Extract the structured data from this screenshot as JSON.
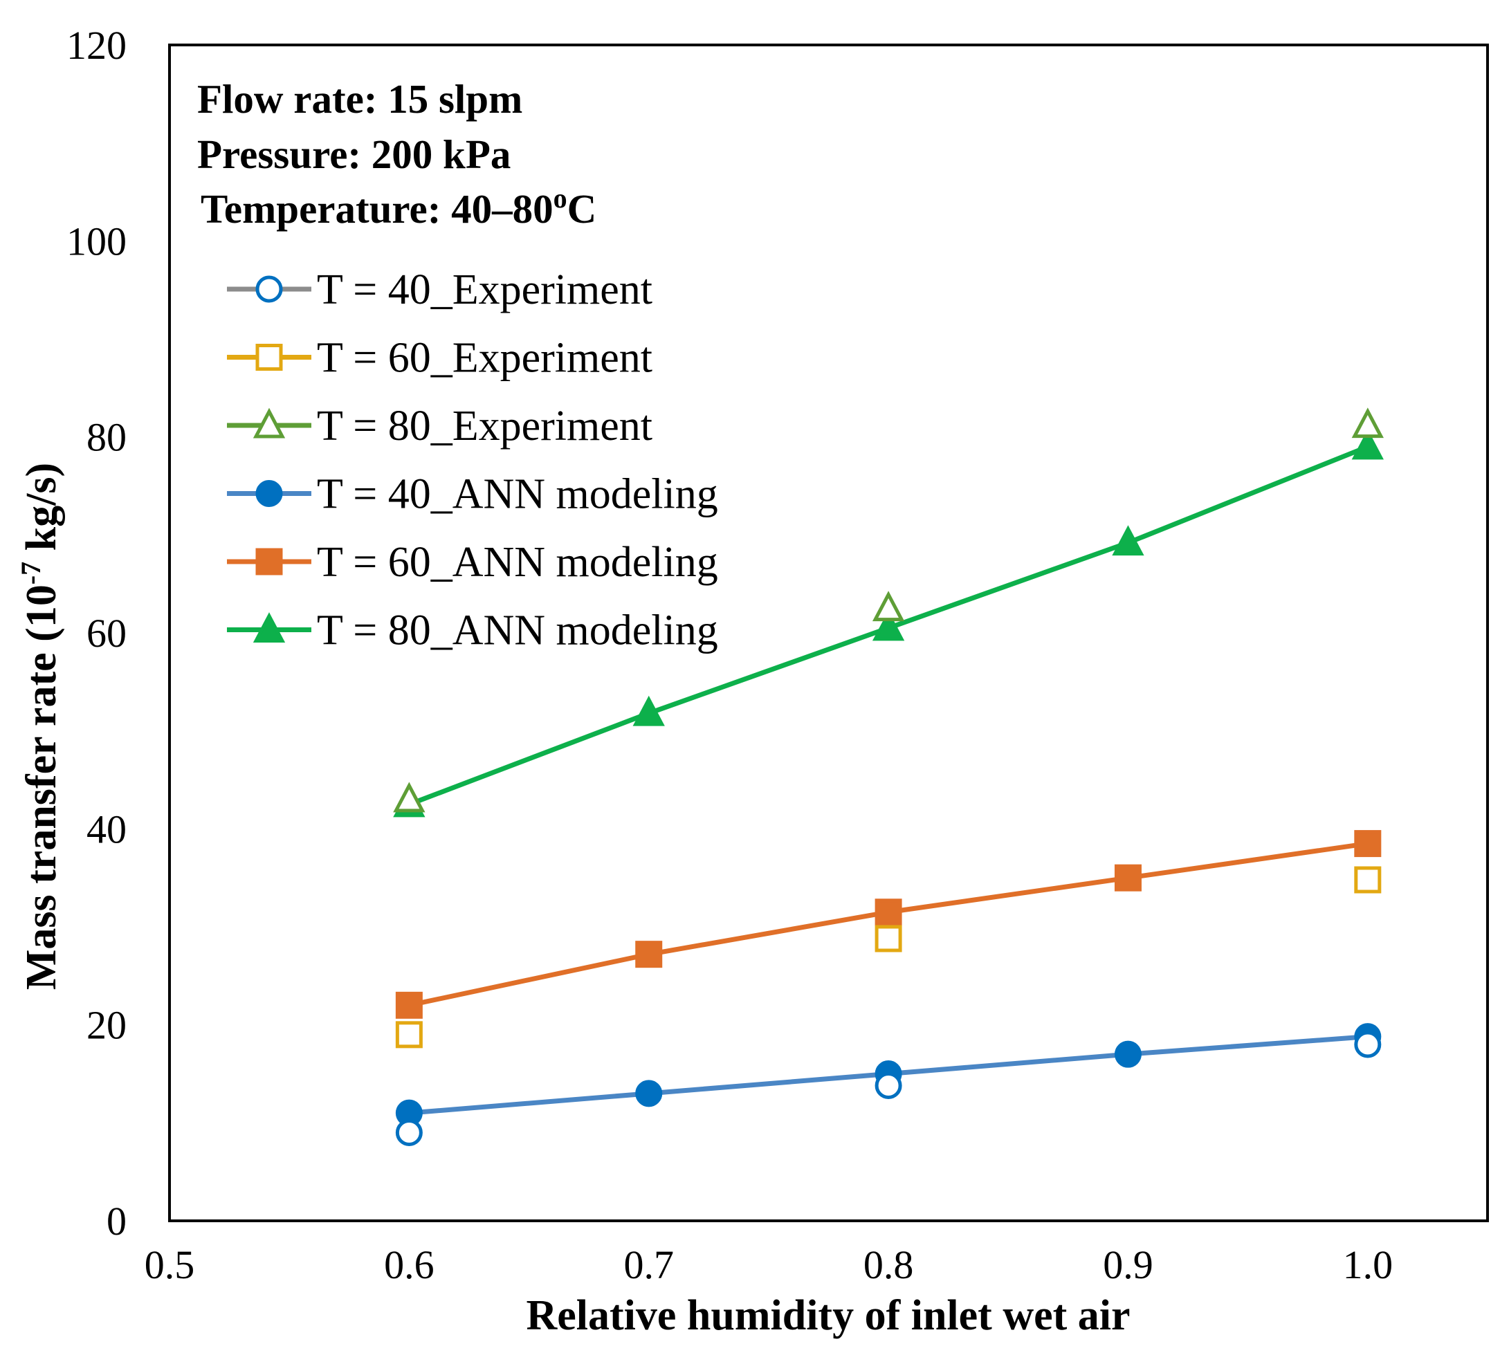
{
  "chart_data": {
    "type": "scatter",
    "title": "",
    "xlabel": "Relative humidity of inlet wet air",
    "ylabel_main": "Mass transfer rate (10",
    "ylabel_exp": "-7",
    "ylabel_tail": " kg/s)",
    "xlim": [
      0.5,
      1.05
    ],
    "ylim": [
      0,
      120
    ],
    "x_ticks": [
      "0.5",
      "0.6",
      "0.7",
      "0.8",
      "0.9",
      "1.0"
    ],
    "y_ticks": [
      "0",
      "20",
      "40",
      "60",
      "80",
      "100",
      "120"
    ],
    "grid": false,
    "legend_position": "top-left",
    "annotations": {
      "flow": "Flow rate: 15 slpm",
      "pressure": "Pressure: 200 kPa",
      "temperature": "Temperature: 40–80",
      "temperature_sup": "o",
      "temperature_unit": "C"
    },
    "series": [
      {
        "name": "T = 40_Experiment",
        "kind": "experiment",
        "marker": "circle",
        "color": "#0070C0",
        "line_color": "#8C8C8C",
        "x": [
          0.6,
          0.8,
          1.0
        ],
        "values": [
          9.0,
          13.8,
          18.0
        ]
      },
      {
        "name": "T = 60_Experiment",
        "kind": "experiment",
        "marker": "square",
        "color": "#E3A812",
        "line_color": "#E3A812",
        "x": [
          0.6,
          0.8,
          1.0
        ],
        "values": [
          19.0,
          28.8,
          34.8
        ]
      },
      {
        "name": "T = 80_Experiment",
        "kind": "experiment",
        "marker": "triangle",
        "color": "#5E9E36",
        "line_color": "#5E9E36",
        "x": [
          0.6,
          0.8,
          1.0
        ],
        "values": [
          43.0,
          62.5,
          81.2
        ]
      },
      {
        "name": "T = 40_ANN modeling",
        "kind": "model",
        "marker": "circle",
        "color": "#0070C0",
        "line_color": "#4A86C5",
        "x": [
          0.6,
          0.7,
          0.8,
          0.9,
          1.0
        ],
        "values": [
          11.0,
          13.0,
          15.0,
          17.0,
          18.8
        ]
      },
      {
        "name": "T = 60_ANN modeling",
        "kind": "model",
        "marker": "square",
        "color": "#E06F28",
        "line_color": "#E06F28",
        "x": [
          0.6,
          0.7,
          0.8,
          0.9,
          1.0
        ],
        "values": [
          22.0,
          27.2,
          31.5,
          35.0,
          38.5
        ]
      },
      {
        "name": "T = 80_ANN modeling",
        "kind": "model",
        "marker": "triangle",
        "color": "#0DB04B",
        "line_color": "#0DB04B",
        "x": [
          0.6,
          0.7,
          0.8,
          0.9,
          1.0
        ],
        "values": [
          42.5,
          51.8,
          60.5,
          69.2,
          79.0
        ]
      }
    ]
  }
}
